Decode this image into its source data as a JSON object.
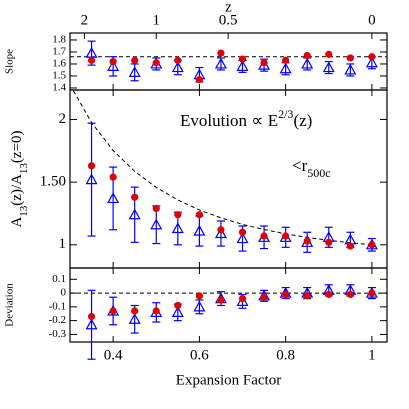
{
  "chart_data": [
    {
      "type": "scatter",
      "ylabel": "Slope",
      "x2label": "z",
      "x2ticks": [
        2,
        1,
        0.5,
        0
      ],
      "x": [
        0.35,
        0.4,
        0.45,
        0.5,
        0.55,
        0.6,
        0.65,
        0.7,
        0.75,
        0.8,
        0.85,
        0.9,
        0.95,
        1.0
      ],
      "xlim": [
        0.3,
        1.035
      ],
      "ylim": [
        1.383,
        1.858
      ],
      "yticks": [
        1.4,
        1.5,
        1.6,
        1.7,
        1.8
      ],
      "hline": 1.66,
      "series": [
        {
          "color": "#0000ff",
          "marker": "triangle",
          "values": [
            1.69,
            1.58,
            1.53,
            1.6,
            1.57,
            1.51,
            1.6,
            1.58,
            1.59,
            1.56,
            1.6,
            1.57,
            1.55,
            1.61
          ],
          "errors": [
            0.1,
            0.08,
            0.07,
            0.05,
            0.06,
            0.06,
            0.05,
            0.05,
            0.05,
            0.05,
            0.05,
            0.05,
            0.05,
            0.05
          ]
        },
        {
          "color": "#e00000",
          "marker": "circle",
          "values": [
            1.63,
            1.62,
            1.63,
            1.61,
            1.63,
            1.47,
            1.69,
            1.64,
            1.61,
            1.63,
            1.67,
            1.68,
            1.65,
            1.66
          ]
        }
      ]
    },
    {
      "type": "scatter",
      "ylabel_parts": [
        {
          "text": "A"
        },
        {
          "text": "13",
          "sub": true
        },
        {
          "text": "(z)/A"
        },
        {
          "text": "13",
          "sub": true
        },
        {
          "text": "(z=0)"
        }
      ],
      "annotations": [
        [
          {
            "text": "Evolution ∝ E"
          },
          {
            "text": "2/3",
            "sup": true
          },
          {
            "text": "(z)"
          }
        ],
        [
          {
            "text": "<r"
          },
          {
            "text": "500c",
            "sub": true
          }
        ]
      ],
      "x": [
        0.35,
        0.4,
        0.45,
        0.5,
        0.55,
        0.6,
        0.65,
        0.7,
        0.75,
        0.8,
        0.85,
        0.9,
        0.95,
        1.0
      ],
      "xlim": [
        0.3,
        1.035
      ],
      "ylim": [
        0.815,
        2.235
      ],
      "yticks": [
        1,
        {
          "value": 1.5,
          "label": "1.50"
        },
        2
      ],
      "curve": {
        "x": [
          0.3,
          0.35,
          0.4,
          0.45,
          0.5,
          0.55,
          0.6,
          0.65,
          0.7,
          0.75,
          0.8,
          0.85,
          0.9,
          0.95,
          1.0
        ],
        "y": [
          2.277,
          1.975,
          1.753,
          1.586,
          1.458,
          1.358,
          1.278,
          1.215,
          1.163,
          1.122,
          1.087,
          1.059,
          1.036,
          1.016,
          1.0
        ]
      },
      "series": [
        {
          "color": "#0000ff",
          "marker": "triangle",
          "values": [
            1.52,
            1.37,
            1.24,
            1.16,
            1.13,
            1.11,
            1.09,
            1.05,
            1.06,
            1.06,
            1.02,
            1.06,
            1.04,
            1.0
          ],
          "errors": [
            0.45,
            0.25,
            0.22,
            0.15,
            0.13,
            0.12,
            0.1,
            0.1,
            0.09,
            0.08,
            0.08,
            0.08,
            0.06,
            0.05
          ]
        },
        {
          "color": "#e00000",
          "marker": "circle",
          "values": [
            1.63,
            1.54,
            1.38,
            1.29,
            1.24,
            1.24,
            1.12,
            1.1,
            1.07,
            1.07,
            1.03,
            1.02,
            0.99,
            1.0
          ]
        }
      ]
    },
    {
      "type": "scatter",
      "ylabel": "Deviation",
      "xlabel": "Expansion Factor",
      "xticks": [
        0.4,
        0.6,
        0.8,
        1
      ],
      "x": [
        0.35,
        0.4,
        0.45,
        0.5,
        0.55,
        0.6,
        0.65,
        0.7,
        0.75,
        0.8,
        0.85,
        0.9,
        0.95,
        1.0
      ],
      "xlim": [
        0.3,
        1.035
      ],
      "ylim": [
        -0.355,
        0.182
      ],
      "yticks": [
        0.1,
        0,
        -0.1,
        -0.2,
        -0.3
      ],
      "hline": 0,
      "series": [
        {
          "color": "#0000ff",
          "marker": "triangle",
          "values": [
            -0.23,
            -0.13,
            -0.19,
            -0.14,
            -0.14,
            -0.1,
            -0.04,
            -0.06,
            -0.02,
            0.0,
            0.0,
            0.02,
            0.02,
            0.0
          ],
          "errors": [
            0.25,
            0.1,
            0.1,
            0.07,
            0.06,
            0.05,
            0.05,
            0.05,
            0.04,
            0.04,
            0.04,
            0.04,
            0.04,
            0.04
          ]
        },
        {
          "color": "#e00000",
          "marker": "circle",
          "values": [
            -0.17,
            -0.13,
            -0.13,
            -0.13,
            -0.09,
            -0.02,
            -0.05,
            -0.04,
            -0.03,
            -0.01,
            -0.02,
            -0.01,
            -0.01,
            0.0
          ]
        }
      ]
    }
  ]
}
